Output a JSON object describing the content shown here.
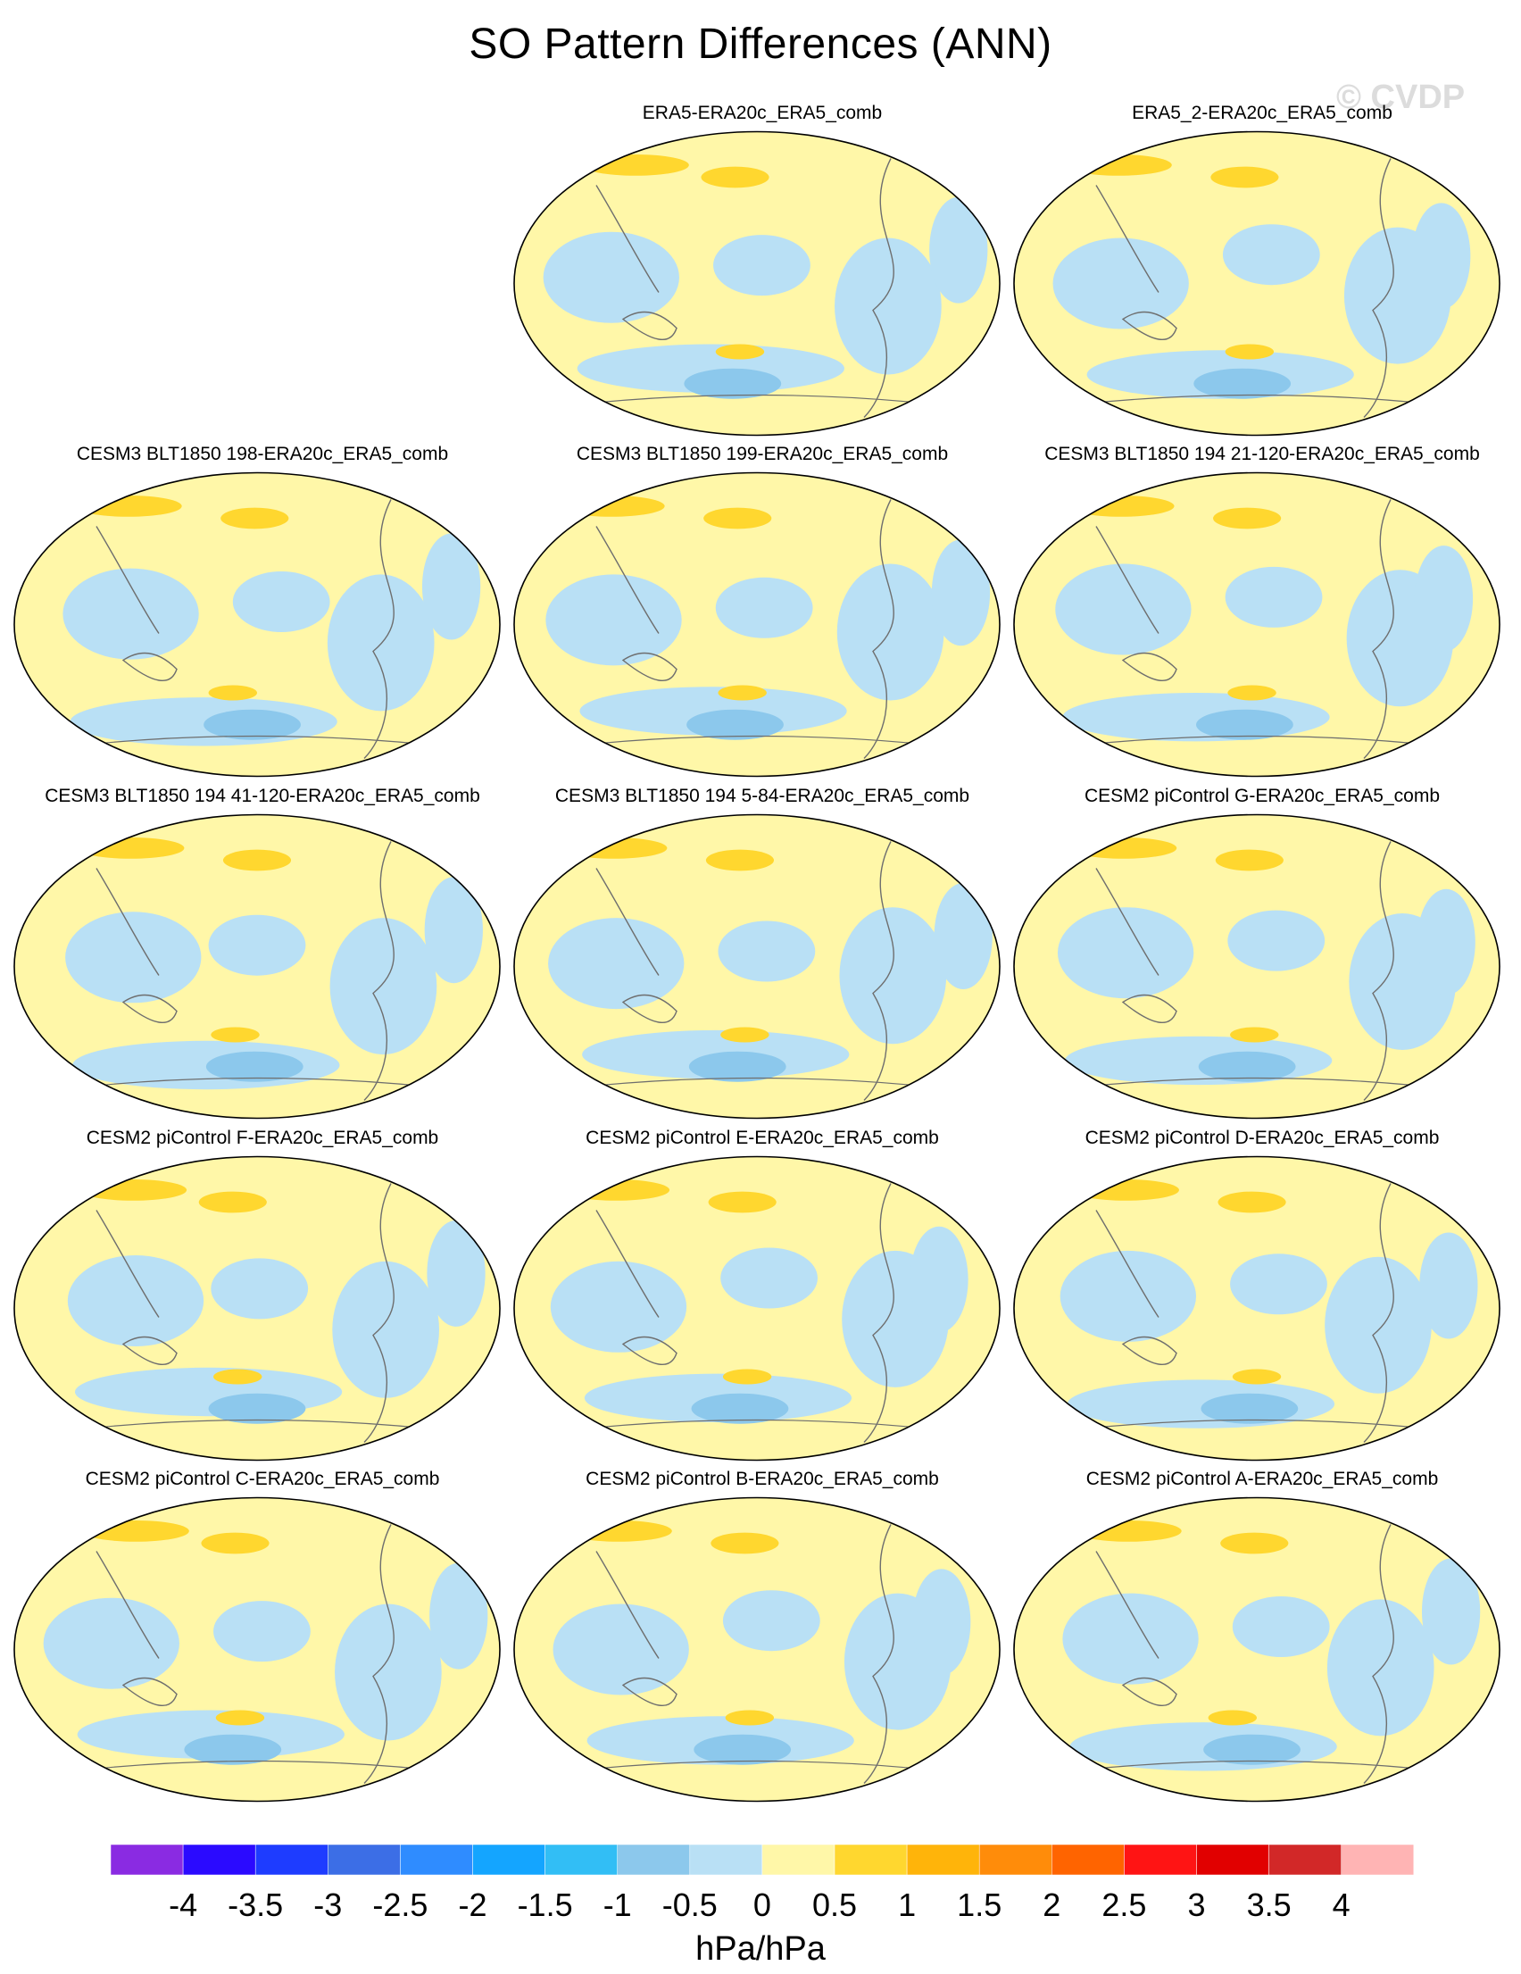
{
  "title": "SO Pattern Differences (ANN)",
  "watermark": "© CVDP",
  "colors": {
    "background_yellow": "#fff7a8",
    "coast": "#6e6e6e"
  },
  "panels": [
    {
      "title": "ERA5-ERA20c_ERA5_comb",
      "col": 1,
      "row": 0
    },
    {
      "title": "ERA5_2-ERA20c_ERA5_comb",
      "col": 2,
      "row": 0
    },
    {
      "title": "CESM3 BLT1850 198-ERA20c_ERA5_comb",
      "col": 0,
      "row": 1
    },
    {
      "title": "CESM3 BLT1850 199-ERA20c_ERA5_comb",
      "col": 1,
      "row": 1
    },
    {
      "title": "CESM3 BLT1850 194 21-120-ERA20c_ERA5_comb",
      "col": 2,
      "row": 1
    },
    {
      "title": "CESM3 BLT1850 194 41-120-ERA20c_ERA5_comb",
      "col": 0,
      "row": 2
    },
    {
      "title": "CESM3 BLT1850 194 5-84-ERA20c_ERA5_comb",
      "col": 1,
      "row": 2
    },
    {
      "title": "CESM2 piControl G-ERA20c_ERA5_comb",
      "col": 2,
      "row": 2
    },
    {
      "title": "CESM2 piControl F-ERA20c_ERA5_comb",
      "col": 0,
      "row": 3
    },
    {
      "title": "CESM2 piControl E-ERA20c_ERA5_comb",
      "col": 1,
      "row": 3
    },
    {
      "title": "CESM2 piControl D-ERA20c_ERA5_comb",
      "col": 2,
      "row": 3
    },
    {
      "title": "CESM2 piControl C-ERA20c_ERA5_comb",
      "col": 0,
      "row": 4
    },
    {
      "title": "CESM2 piControl B-ERA20c_ERA5_comb",
      "col": 1,
      "row": 4
    },
    {
      "title": "CESM2 piControl A-ERA20c_ERA5_comb",
      "col": 2,
      "row": 4
    }
  ],
  "colorbar": {
    "unit": "hPa/hPa",
    "labels": [
      "-4",
      "-3.5",
      "-3",
      "-2.5",
      "-2",
      "-1.5",
      "-1",
      "-0.5",
      "0",
      "0.5",
      "1",
      "1.5",
      "2",
      "2.5",
      "3",
      "3.5",
      "4"
    ],
    "colors": [
      "#8a2be2",
      "#2b0aff",
      "#1e3cff",
      "#3c6ee6",
      "#2f8cff",
      "#14a5ff",
      "#32bef5",
      "#8cc8ec",
      "#b9e0f5",
      "#fff7a8",
      "#ffd72f",
      "#ffb40a",
      "#ff8c0a",
      "#ff6400",
      "#ff1414",
      "#e10000",
      "#d22828",
      "#ffb4b4"
    ]
  }
}
